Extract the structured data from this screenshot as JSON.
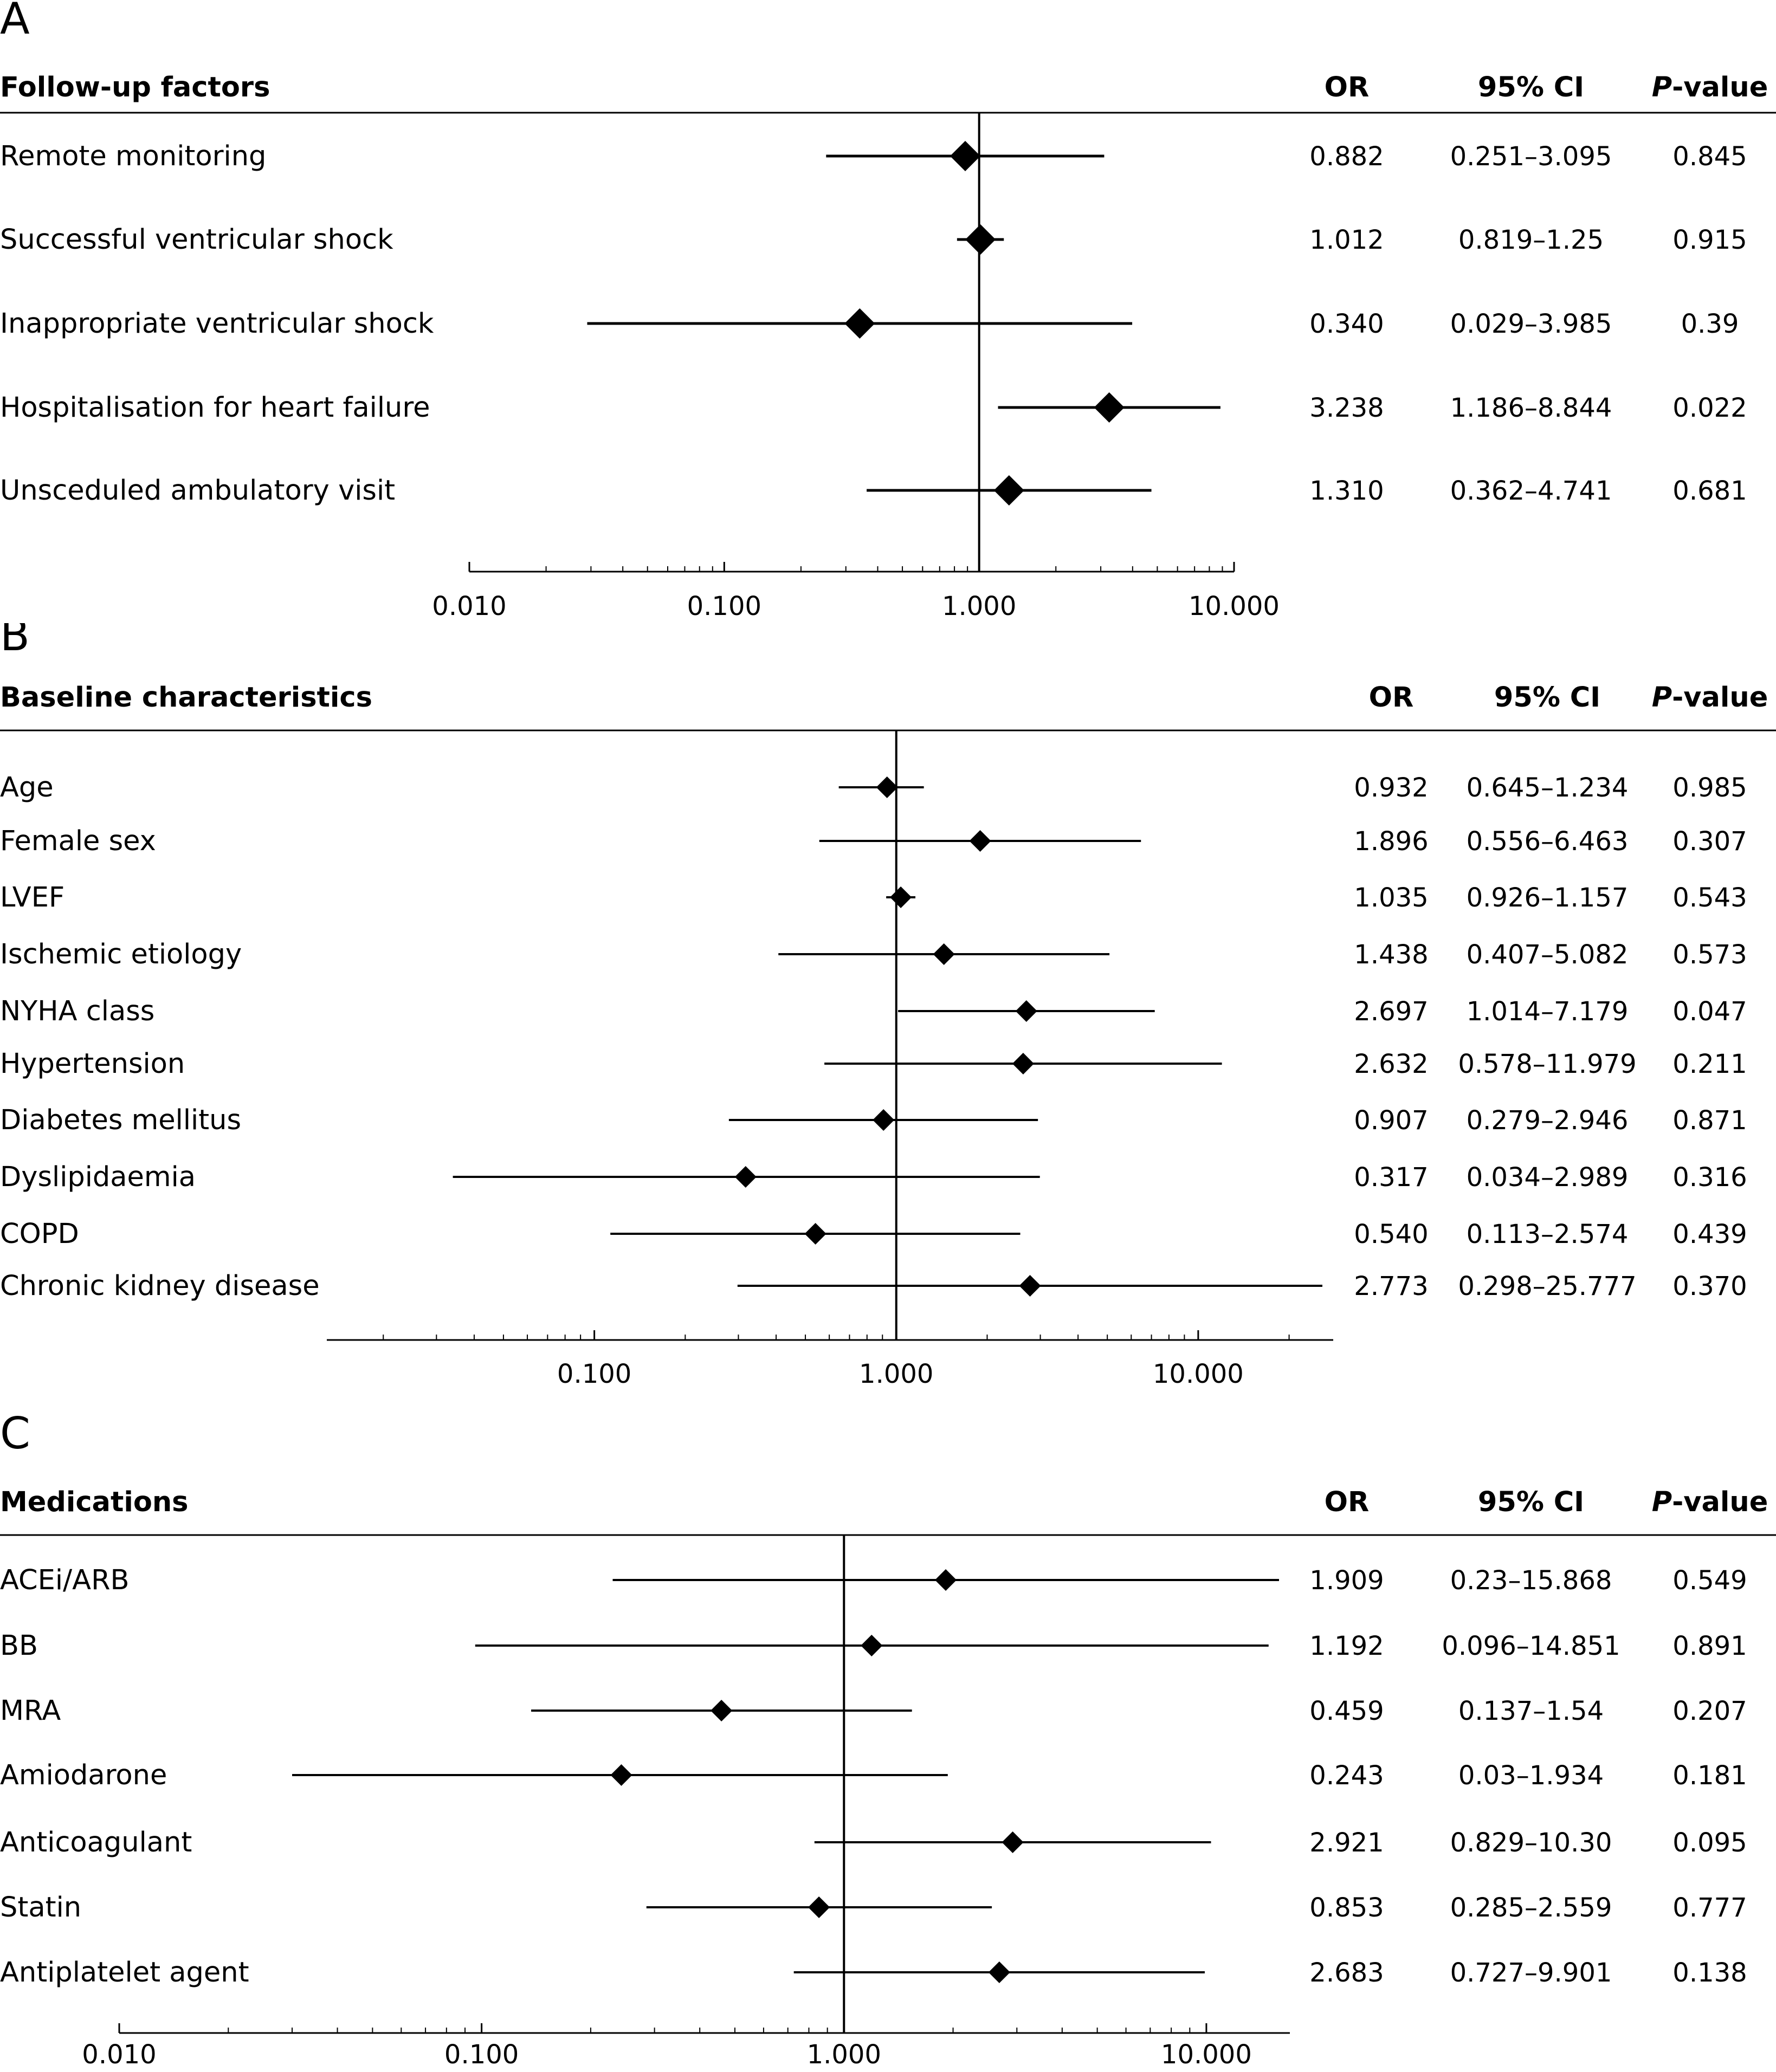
{
  "chart_data": [
    {
      "type": "forest",
      "panel_label": "A",
      "section_header": "Follow-up factors",
      "col_headers": {
        "or": "OR",
        "ci": "95% CI",
        "p_italic": "P",
        "p_rest": "-value"
      },
      "x_scale": "log",
      "xlim": [
        0.01,
        10
      ],
      "ref_line": 1,
      "ticks": [
        0.01,
        0.1,
        1,
        10
      ],
      "tick_labels": [
        "0.010",
        "0.100",
        "1.000",
        "10.000"
      ],
      "rows": [
        {
          "label": "Remote monitoring",
          "or": 0.882,
          "lo": 0.251,
          "hi": 3.095,
          "or_text": "0.882",
          "ci_text": "0.251–3.095",
          "p_text": "0.845"
        },
        {
          "label": "Successful ventricular shock",
          "or": 1.012,
          "lo": 0.819,
          "hi": 1.25,
          "or_text": "1.012",
          "ci_text": "0.819–1.25",
          "p_text": "0.915"
        },
        {
          "label": "Inappropriate ventricular shock",
          "or": 0.34,
          "lo": 0.029,
          "hi": 3.985,
          "or_text": "0.340",
          "ci_text": "0.029–3.985",
          "p_text": "0.39"
        },
        {
          "label": "Hospitalisation for heart failure",
          "or": 3.238,
          "lo": 1.186,
          "hi": 8.844,
          "or_text": "3.238",
          "ci_text": "1.186–8.844",
          "p_text": "0.022"
        },
        {
          "label": "Unsceduled ambulatory visit",
          "or": 1.31,
          "lo": 0.362,
          "hi": 4.741,
          "or_text": "1.310",
          "ci_text": "0.362–4.741",
          "p_text": "0.681"
        }
      ]
    },
    {
      "type": "forest",
      "panel_label": "B",
      "section_header": "Baseline characteristics",
      "col_headers": {
        "or": "OR",
        "ci": "95% CI",
        "p_italic": "P",
        "p_rest": "-value"
      },
      "x_scale": "log",
      "xlim": [
        0.013,
        28
      ],
      "ref_line": 1,
      "ticks": [
        0.1,
        1,
        10
      ],
      "tick_labels": [
        "0.100",
        "1.000",
        "10.000"
      ],
      "rows": [
        {
          "label": "Age",
          "or": 0.932,
          "lo": 0.645,
          "hi": 1.234,
          "or_text": "0.932",
          "ci_text": "0.645–1.234",
          "p_text": "0.985"
        },
        {
          "label": "Female sex",
          "or": 1.896,
          "lo": 0.556,
          "hi": 6.463,
          "or_text": "1.896",
          "ci_text": "0.556–6.463",
          "p_text": "0.307"
        },
        {
          "label": "LVEF",
          "or": 1.035,
          "lo": 0.926,
          "hi": 1.157,
          "or_text": "1.035",
          "ci_text": "0.926–1.157",
          "p_text": "0.543"
        },
        {
          "label": "Ischemic etiology",
          "or": 1.438,
          "lo": 0.407,
          "hi": 5.082,
          "or_text": "1.438",
          "ci_text": "0.407–5.082",
          "p_text": "0.573"
        },
        {
          "label": "NYHA class",
          "or": 2.697,
          "lo": 1.014,
          "hi": 7.179,
          "or_text": "2.697",
          "ci_text": "1.014–7.179",
          "p_text": "0.047"
        },
        {
          "label": "Hypertension",
          "or": 2.632,
          "lo": 0.578,
          "hi": 11.979,
          "or_text": "2.632",
          "ci_text": "0.578–11.979",
          "p_text": "0.211"
        },
        {
          "label": "Diabetes mellitus",
          "or": 0.907,
          "lo": 0.279,
          "hi": 2.946,
          "or_text": "0.907",
          "ci_text": "0.279–2.946",
          "p_text": "0.871"
        },
        {
          "label": "Dyslipidaemia",
          "or": 0.317,
          "lo": 0.034,
          "hi": 2.989,
          "or_text": "0.317",
          "ci_text": "0.034–2.989",
          "p_text": "0.316"
        },
        {
          "label": "COPD",
          "or": 0.54,
          "lo": 0.113,
          "hi": 2.574,
          "or_text": "0.540",
          "ci_text": "0.113–2.574",
          "p_text": "0.439"
        },
        {
          "label": "Chronic kidney disease",
          "or": 2.773,
          "lo": 0.298,
          "hi": 25.777,
          "or_text": "2.773",
          "ci_text": "0.298–25.777",
          "p_text": "0.370"
        }
      ]
    },
    {
      "type": "forest",
      "panel_label": "C",
      "section_header": "Medications",
      "col_headers": {
        "or": "OR",
        "ci": "95% CI",
        "p_italic": "P",
        "p_rest": "-value"
      },
      "x_scale": "log",
      "xlim": [
        0.01,
        17
      ],
      "ref_line": 1,
      "ticks": [
        0.01,
        0.1,
        1,
        10
      ],
      "tick_labels": [
        "0.010",
        "0.100",
        "1.000",
        "10.000"
      ],
      "rows": [
        {
          "label": "ACEi/ARB",
          "or": 1.909,
          "lo": 0.23,
          "hi": 15.868,
          "or_text": "1.909",
          "ci_text": "0.23–15.868",
          "p_text": "0.549"
        },
        {
          "label": "BB",
          "or": 1.192,
          "lo": 0.096,
          "hi": 14.851,
          "or_text": "1.192",
          "ci_text": "0.096–14.851",
          "p_text": "0.891"
        },
        {
          "label": "MRA",
          "or": 0.459,
          "lo": 0.137,
          "hi": 1.54,
          "or_text": "0.459",
          "ci_text": "0.137–1.54",
          "p_text": "0.207"
        },
        {
          "label": "Amiodarone",
          "or": 0.243,
          "lo": 0.03,
          "hi": 1.934,
          "or_text": "0.243",
          "ci_text": "0.03–1.934",
          "p_text": "0.181"
        },
        {
          "label": "Anticoagulant",
          "or": 2.921,
          "lo": 0.829,
          "hi": 10.3,
          "or_text": "2.921",
          "ci_text": "0.829–10.30",
          "p_text": "0.095"
        },
        {
          "label": "Statin",
          "or": 0.853,
          "lo": 0.285,
          "hi": 2.559,
          "or_text": "0.853",
          "ci_text": "0.285–2.559",
          "p_text": "0.777"
        },
        {
          "label": "Antiplatelet agent",
          "or": 2.683,
          "lo": 0.727,
          "hi": 9.901,
          "or_text": "2.683",
          "ci_text": "0.727–9.901",
          "p_text": "0.138"
        }
      ]
    }
  ]
}
